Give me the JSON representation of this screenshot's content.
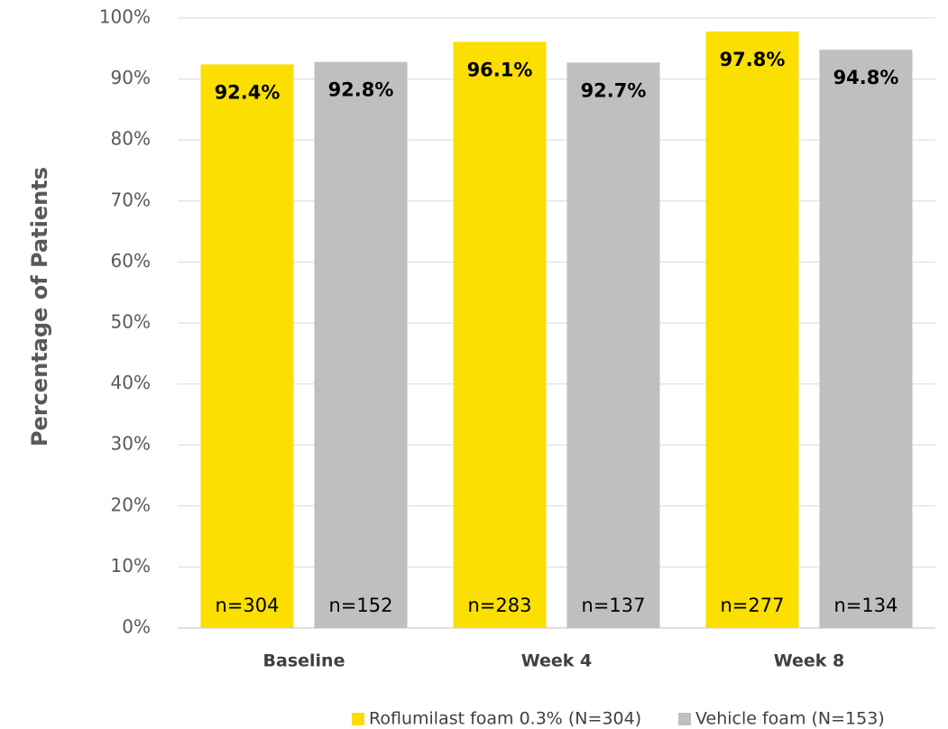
{
  "chart_data": {
    "type": "bar",
    "y_axis_label": "Percentage of Patients",
    "categories": [
      "Baseline",
      "Week 4",
      "Week 8"
    ],
    "series": [
      {
        "name": "Roflumilast foam 0.3% (N=304)",
        "color": "#FADF00",
        "values": [
          92.4,
          96.1,
          97.8
        ],
        "value_labels": [
          "92.4%",
          "96.1%",
          "97.8%"
        ],
        "n_labels": [
          "n=304",
          "n=283",
          "n=277"
        ]
      },
      {
        "name": "Vehicle foam (N=153)",
        "color": "#BFBFBF",
        "values": [
          92.8,
          92.7,
          94.8
        ],
        "value_labels": [
          "92.8%",
          "92.7%",
          "94.8%"
        ],
        "n_labels": [
          "n=152",
          "n=137",
          "n=134"
        ]
      }
    ],
    "ylim": [
      0,
      100
    ],
    "yticks": [
      {
        "value": 0,
        "label": "0%"
      },
      {
        "value": 10,
        "label": "10%"
      },
      {
        "value": 20,
        "label": "20%"
      },
      {
        "value": 30,
        "label": "30%"
      },
      {
        "value": 40,
        "label": "40%"
      },
      {
        "value": 50,
        "label": "50%"
      },
      {
        "value": 60,
        "label": "60%"
      },
      {
        "value": 70,
        "label": "70%"
      },
      {
        "value": 80,
        "label": "80%"
      },
      {
        "value": 90,
        "label": "90%"
      },
      {
        "value": 100,
        "label": "100%"
      }
    ],
    "grid": true,
    "legend": "bottom"
  }
}
